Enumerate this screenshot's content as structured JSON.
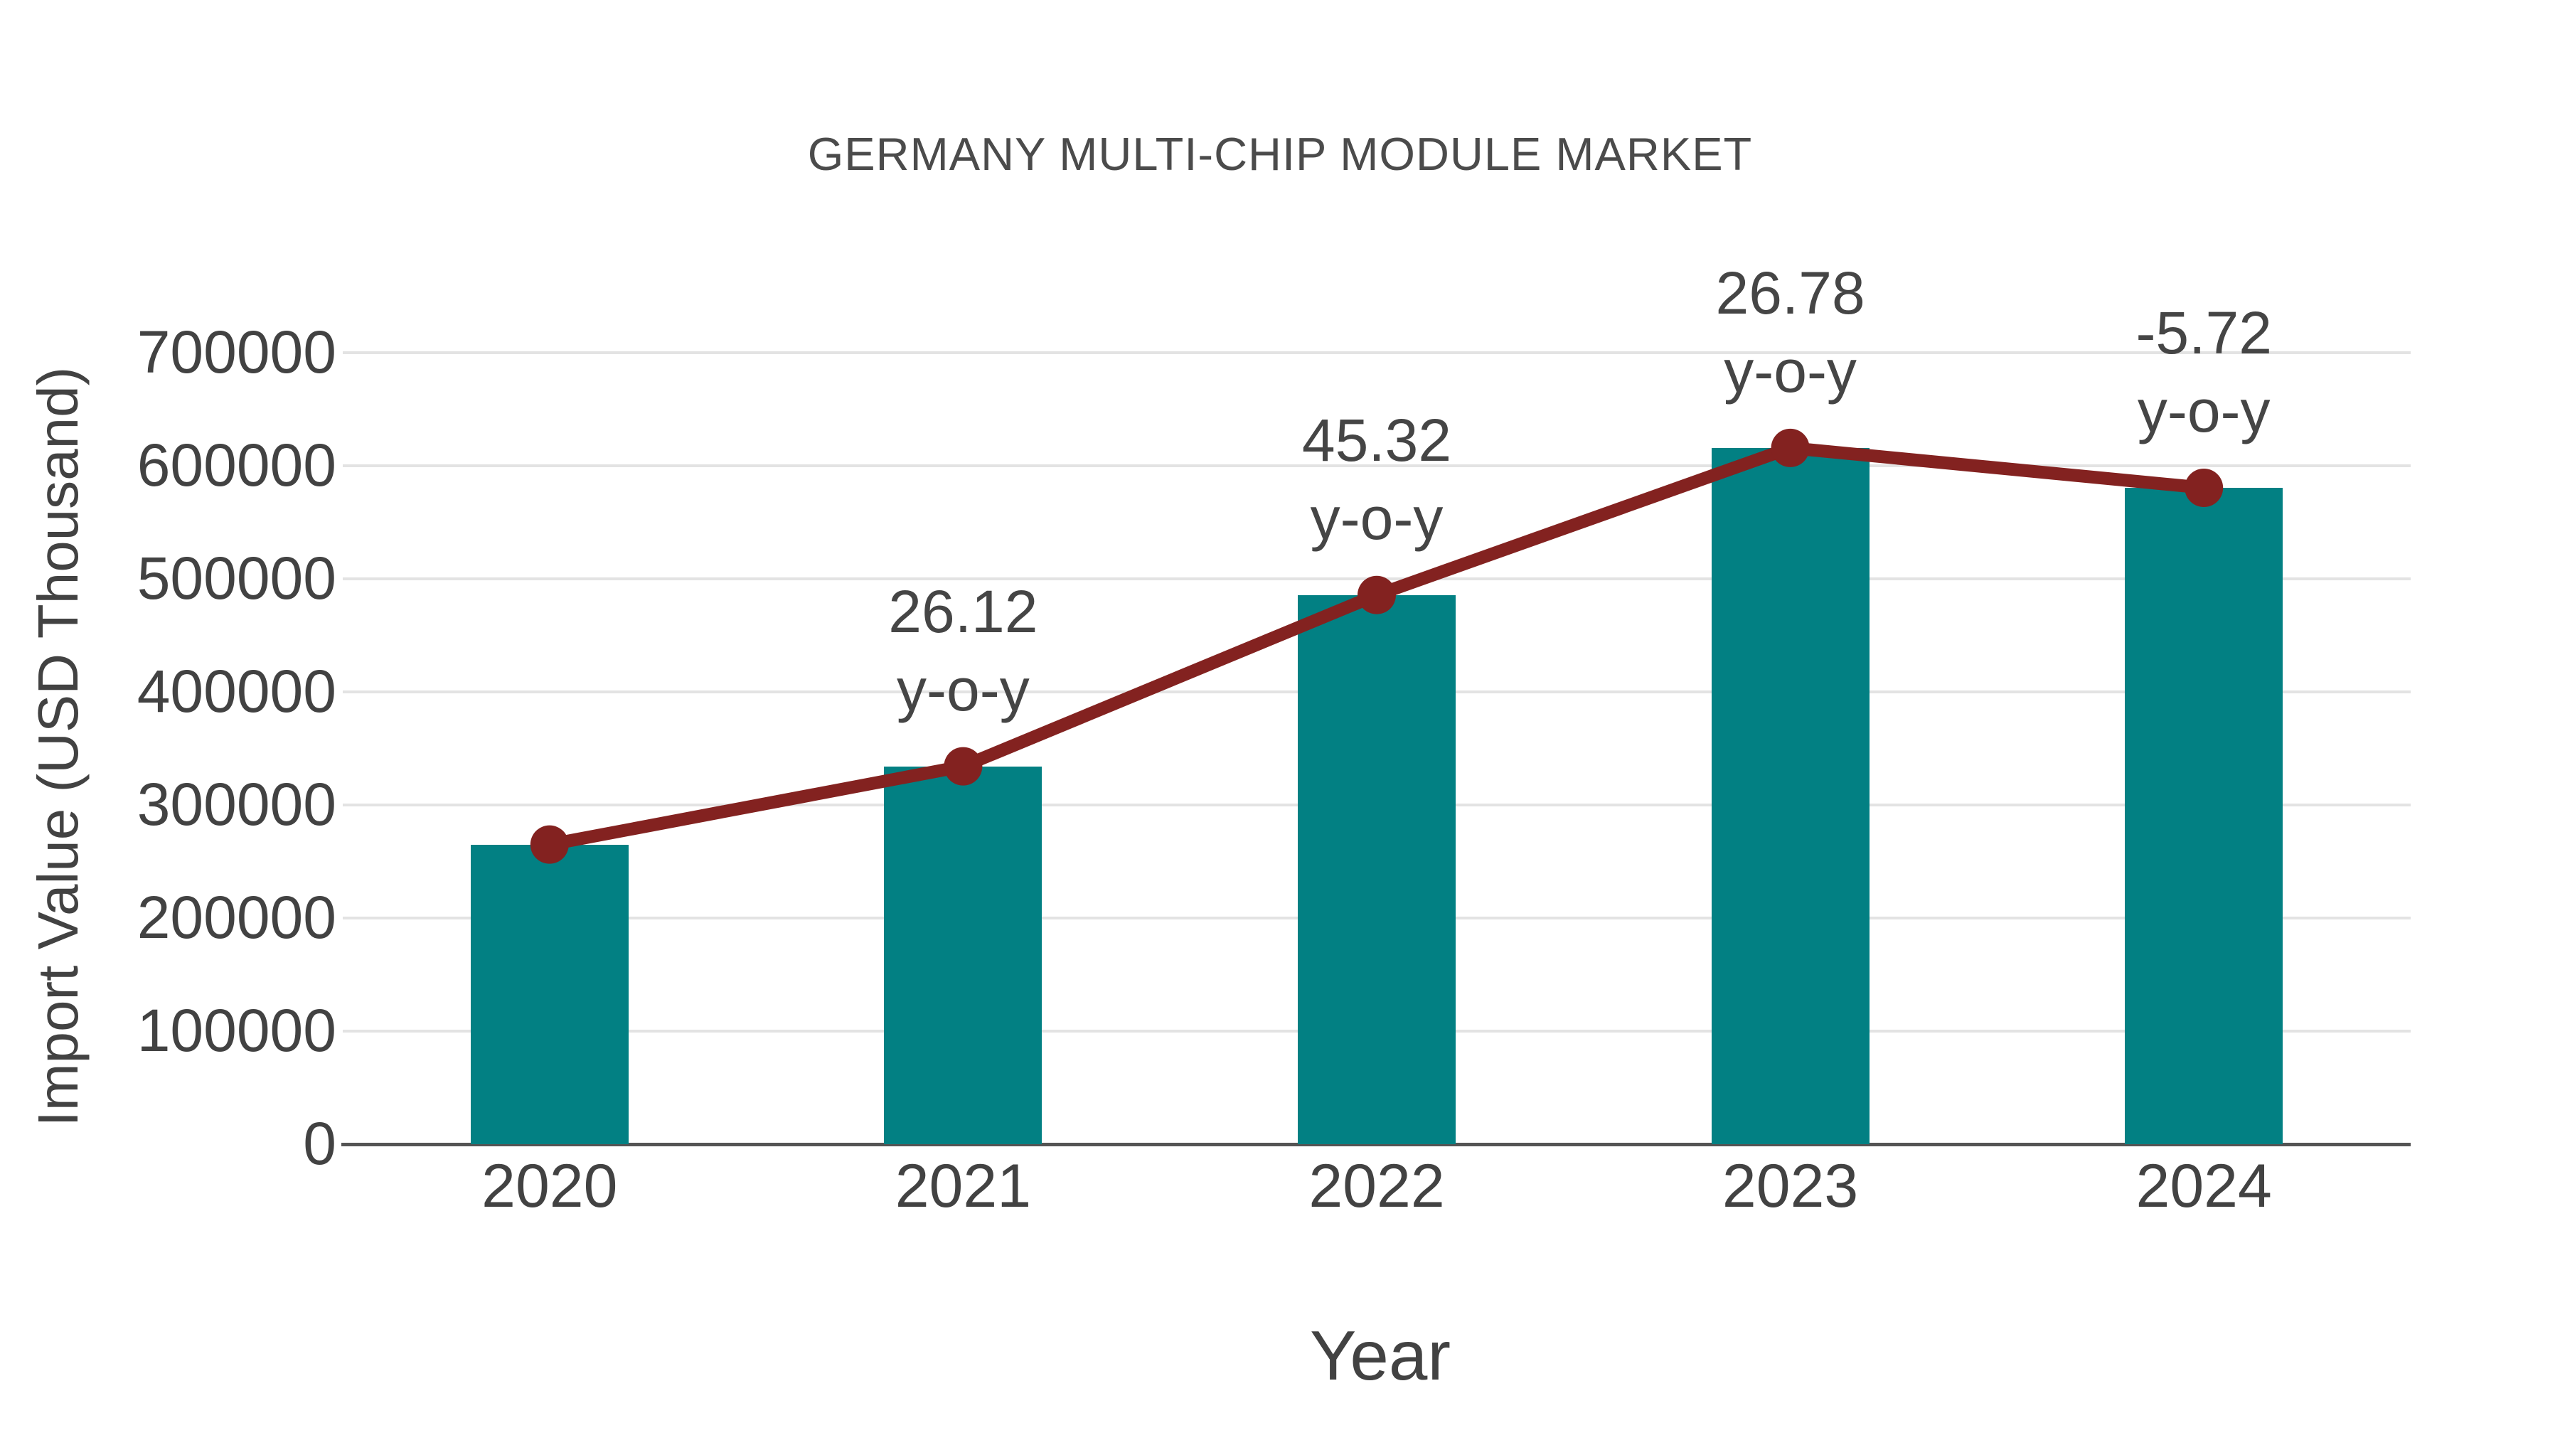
{
  "chart_data": {
    "type": "bar",
    "combo": "bar+line",
    "title": "GERMANY MULTI-CHIP MODULE MARKET",
    "xlabel": "Year",
    "ylabel": "Import Value (USD Thousand)",
    "categories": [
      "2020",
      "2021",
      "2022",
      "2023",
      "2024"
    ],
    "series": [
      {
        "name": "Import Value bars",
        "type": "bar",
        "values": [
          265000,
          334200,
          485700,
          615800,
          580500
        ]
      },
      {
        "name": "Import Value trend line",
        "type": "line",
        "values": [
          265000,
          334200,
          485700,
          615800,
          580500
        ]
      }
    ],
    "annotations": [
      {
        "category": "2021",
        "line1": "26.12",
        "line2": "y-o-y"
      },
      {
        "category": "2022",
        "line1": "45.32",
        "line2": "y-o-y"
      },
      {
        "category": "2023",
        "line1": "26.78",
        "line2": "y-o-y"
      },
      {
        "category": "2024",
        "line1": "-5.72",
        "line2": "y-o-y"
      }
    ],
    "ylim": [
      0,
      700000
    ],
    "ytick_step": 100000,
    "yticks": [
      "0",
      "100000",
      "200000",
      "300000",
      "400000",
      "500000",
      "600000",
      "700000"
    ],
    "grid": true,
    "legend_position": "none",
    "colors": {
      "bar": "#028083",
      "line": "#832220",
      "marker": "#832220",
      "title_text": "#4b4b4b",
      "axis_text": "#424242",
      "annotation_text": "#454545",
      "gridline": "#e3e3e3",
      "axis_line": "#545454",
      "background": "#ffffff"
    }
  }
}
